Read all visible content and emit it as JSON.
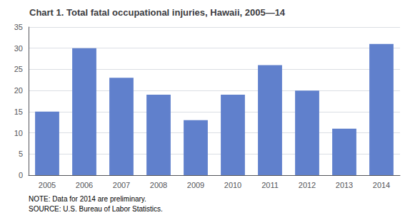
{
  "chart_data": {
    "type": "bar",
    "title": "Chart 1. Total fatal occupational injuries, Hawaii, 2005—14",
    "categories": [
      "2005",
      "2006",
      "2007",
      "2008",
      "2009",
      "2010",
      "2011",
      "2012",
      "2013",
      "2014"
    ],
    "values": [
      15,
      30,
      23,
      19,
      13,
      19,
      26,
      20,
      11,
      31
    ],
    "color": "#6080cc",
    "ylim": [
      0,
      35
    ],
    "yticks": [
      0,
      5,
      10,
      15,
      20,
      25,
      30,
      35
    ],
    "grid": true,
    "annotations": [
      "NOTE: Data for 2014 are preliminary.",
      "SOURCE: U.S. Bureau of Labor Statistics."
    ]
  }
}
